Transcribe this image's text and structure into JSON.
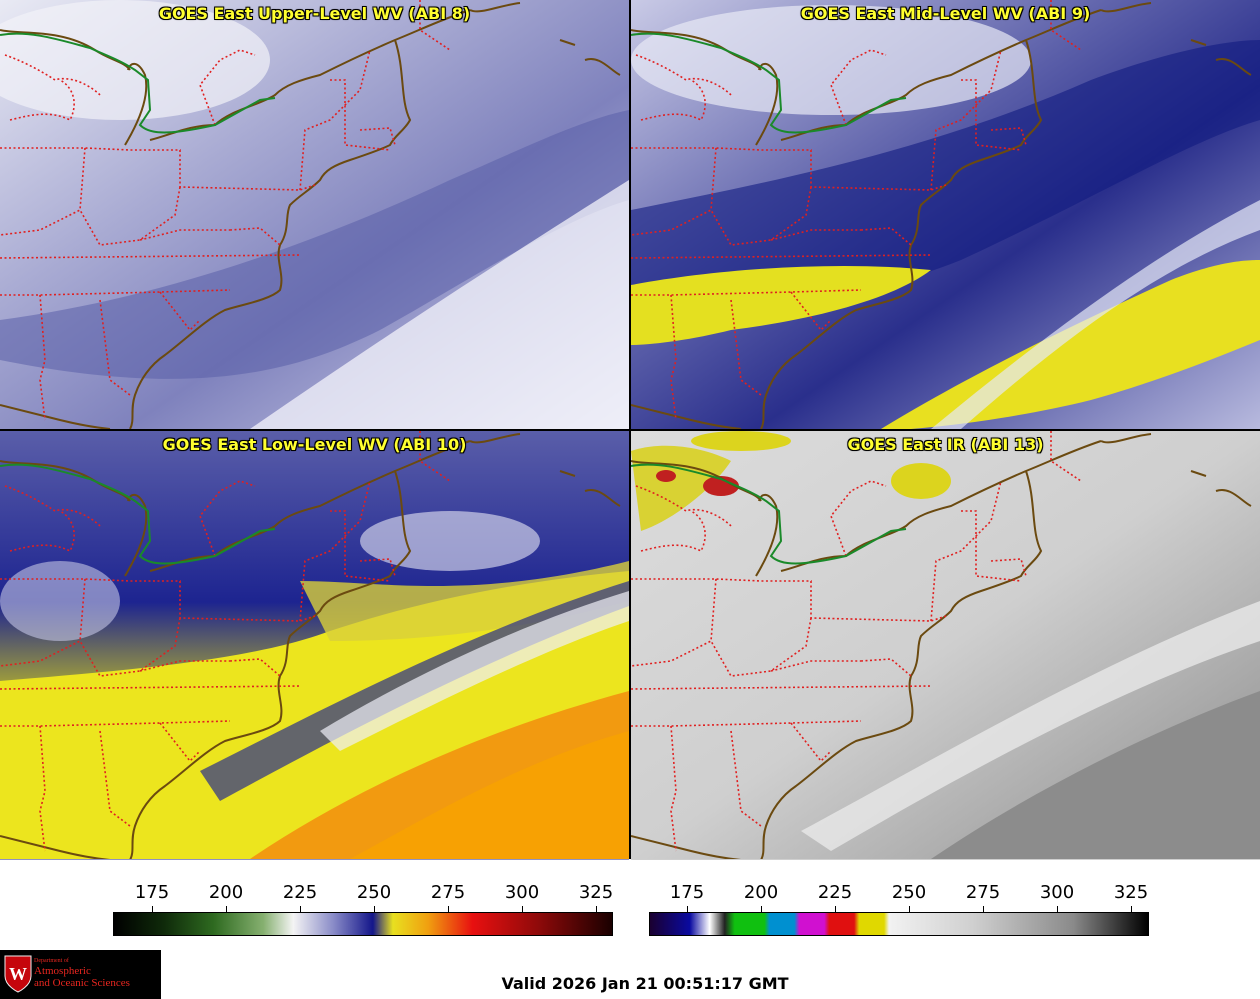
{
  "panels": [
    {
      "title": "GOES East Upper-Level WV (ABI 8)"
    },
    {
      "title": "GOES East Mid-Level WV (ABI 9)"
    },
    {
      "title": "GOES East Low-Level WV (ABI 10)"
    },
    {
      "title": "GOES East IR (ABI 13)"
    }
  ],
  "colorbars": [
    {
      "ticks": [
        "175",
        "200",
        "225",
        "250",
        "275",
        "300",
        "325"
      ]
    },
    {
      "ticks": [
        "175",
        "200",
        "225",
        "250",
        "275",
        "300",
        "325"
      ]
    }
  ],
  "logo": {
    "line1": "Department of",
    "line2": "Atmospheric",
    "line3": "and Oceanic Sciences"
  },
  "footer": {
    "valid": "Valid 2026 Jan 21 00:51:17 GMT"
  },
  "colors": {
    "title_text": "#ffff30",
    "state_borders": "#e02020",
    "coastlines": "#6b4a10",
    "canada_border": "#1a8a2a"
  }
}
